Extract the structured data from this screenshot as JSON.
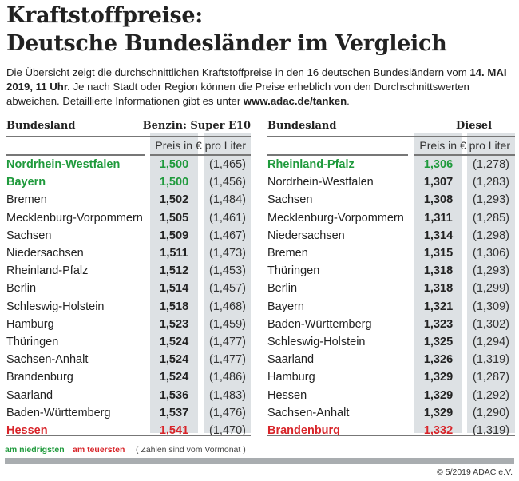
{
  "title_line1": "Kraftstoffpreise:",
  "title_line2": "Deutsche Bundesländer im Vergleich",
  "intro": {
    "part1": "Die Übersicht zeigt die durchschnittlichen Kraftstoffpreise in den 16 deutschen Bundesländern vom ",
    "date": "14. MAI 2019, 11 Uhr.",
    "part2": " Je nach Stadt oder Region können die Preise erheblich von den Durchschnittswerten abweichen. Detaillierte Informationen gibt es unter ",
    "url": "www.adac.de/tanken",
    "part3": "."
  },
  "colors": {
    "low": "#1f9a3c",
    "high": "#d8252a",
    "shade": "#dde1e4"
  },
  "benzin": {
    "col_land": "Bundesland",
    "col_fuel": "Benzin:  Super E10",
    "unit": "Preis in € pro Liter",
    "rows": [
      {
        "land": "Nordrhein-Westfalen",
        "price": "1,500",
        "prev": "(1,465)",
        "status": "low"
      },
      {
        "land": "Bayern",
        "price": "1,500",
        "prev": "(1,456)",
        "status": "low"
      },
      {
        "land": "Bremen",
        "price": "1,502",
        "prev": "(1,484)",
        "status": ""
      },
      {
        "land": "Mecklenburg-Vorpommern",
        "price": "1,505",
        "prev": "(1,461)",
        "status": ""
      },
      {
        "land": "Sachsen",
        "price": "1,509",
        "prev": "(1,467)",
        "status": ""
      },
      {
        "land": "Niedersachsen",
        "price": "1,511",
        "prev": "(1,473)",
        "status": ""
      },
      {
        "land": "Rheinland-Pfalz",
        "price": "1,512",
        "prev": "(1,453)",
        "status": ""
      },
      {
        "land": "Berlin",
        "price": "1,514",
        "prev": "(1,457)",
        "status": ""
      },
      {
        "land": "Schleswig-Holstein",
        "price": "1,518",
        "prev": "(1,468)",
        "status": ""
      },
      {
        "land": "Hamburg",
        "price": "1,523",
        "prev": "(1,459)",
        "status": ""
      },
      {
        "land": "Thüringen",
        "price": "1,524",
        "prev": "(1,477)",
        "status": ""
      },
      {
        "land": "Sachsen-Anhalt",
        "price": "1,524",
        "prev": "(1,477)",
        "status": ""
      },
      {
        "land": "Brandenburg",
        "price": "1,524",
        "prev": "(1,486)",
        "status": ""
      },
      {
        "land": "Saarland",
        "price": "1,536",
        "prev": "(1,483)",
        "status": ""
      },
      {
        "land": "Baden-Württemberg",
        "price": "1,537",
        "prev": "(1,476)",
        "status": ""
      },
      {
        "land": "Hessen",
        "price": "1,541",
        "prev": "(1,470)",
        "status": "high"
      }
    ]
  },
  "diesel": {
    "col_land": "Bundesland",
    "col_fuel": "Diesel",
    "unit": "Preis in € pro Liter",
    "rows": [
      {
        "land": "Rheinland-Pfalz",
        "price": "1,306",
        "prev": "(1,278)",
        "status": "low"
      },
      {
        "land": "Nordrhein-Westfalen",
        "price": "1,307",
        "prev": "(1,283)",
        "status": ""
      },
      {
        "land": "Sachsen",
        "price": "1,308",
        "prev": "(1,293)",
        "status": ""
      },
      {
        "land": "Mecklenburg-Vorpommern",
        "price": "1,311",
        "prev": "(1,285)",
        "status": ""
      },
      {
        "land": "Niedersachsen",
        "price": "1,314",
        "prev": "(1,298)",
        "status": ""
      },
      {
        "land": "Bremen",
        "price": "1,315",
        "prev": "(1,306)",
        "status": ""
      },
      {
        "land": "Thüringen",
        "price": "1,318",
        "prev": "(1,293)",
        "status": ""
      },
      {
        "land": "Berlin",
        "price": "1,318",
        "prev": "(1,299)",
        "status": ""
      },
      {
        "land": "Bayern",
        "price": "1,321",
        "prev": "(1,309)",
        "status": ""
      },
      {
        "land": "Baden-Württemberg",
        "price": "1,323",
        "prev": "(1,302)",
        "status": ""
      },
      {
        "land": "Schleswig-Holstein",
        "price": "1,325",
        "prev": "(1,294)",
        "status": ""
      },
      {
        "land": "Saarland",
        "price": "1,326",
        "prev": "(1,319)",
        "status": ""
      },
      {
        "land": "Hamburg",
        "price": "1,329",
        "prev": "(1,287)",
        "status": ""
      },
      {
        "land": "Hessen",
        "price": "1,329",
        "prev": "(1,292)",
        "status": ""
      },
      {
        "land": "Sachsen-Anhalt",
        "price": "1,329",
        "prev": "(1,290)",
        "status": ""
      },
      {
        "land": "Brandenburg",
        "price": "1,332",
        "prev": "(1,319)",
        "status": "high"
      }
    ]
  },
  "legend": {
    "low": "am niedrigsten",
    "high": "am teuersten",
    "note": "( Zahlen sind vom Vormonat )"
  },
  "copyright": "© 5/2019 ADAC e.V."
}
